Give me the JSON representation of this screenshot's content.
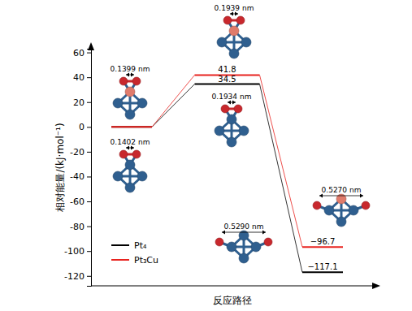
{
  "chart_data": {
    "type": "line",
    "x_label": "反应路径",
    "y_label": "相对能量/(kJ·mol⁻¹)",
    "categories": [
      null,
      null,
      null
    ],
    "series": [
      {
        "name": "Pt₄",
        "color": "#000000",
        "values": [
          0,
          34.5,
          -117.1
        ],
        "value_labels": [
          null,
          "34.5",
          "−117.1"
        ],
        "annotations": [
          "0.1402 nm",
          "0.1934 nm",
          "0.5290 nm"
        ]
      },
      {
        "name": "Pt₃Cu",
        "color": "#e8231f",
        "values": [
          0,
          41.8,
          -96.7
        ],
        "value_labels": [
          null,
          "41.8",
          "−96.7"
        ],
        "annotations": [
          "0.1399 nm",
          "0.1939 nm",
          "0.5270 nm"
        ]
      }
    ],
    "ylim": [
      -128,
      63
    ],
    "yticks": [
      -120,
      -100,
      -80,
      -60,
      -40,
      -20,
      0,
      20,
      40,
      60
    ],
    "data_labels": true,
    "tick_labels": "y",
    "legend": "lower left"
  }
}
